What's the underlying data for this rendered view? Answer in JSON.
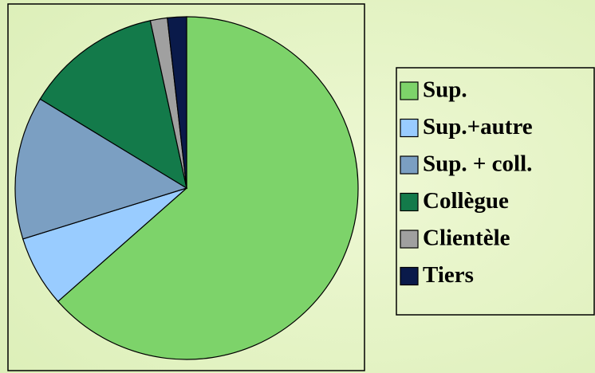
{
  "chart_data": {
    "type": "pie",
    "categories": [
      "Sup.",
      "Sup.+autre",
      "Sup. + coll.",
      "Collègue",
      "Clientèle",
      "Tiers"
    ],
    "values": [
      63.5,
      6.7,
      13.5,
      12.9,
      1.6,
      1.8
    ],
    "colors": [
      "#7dd36a",
      "#99ccff",
      "#7b9fc2",
      "#137a4a",
      "#a0a0a0",
      "#0a1a4a"
    ],
    "legend": "right"
  }
}
